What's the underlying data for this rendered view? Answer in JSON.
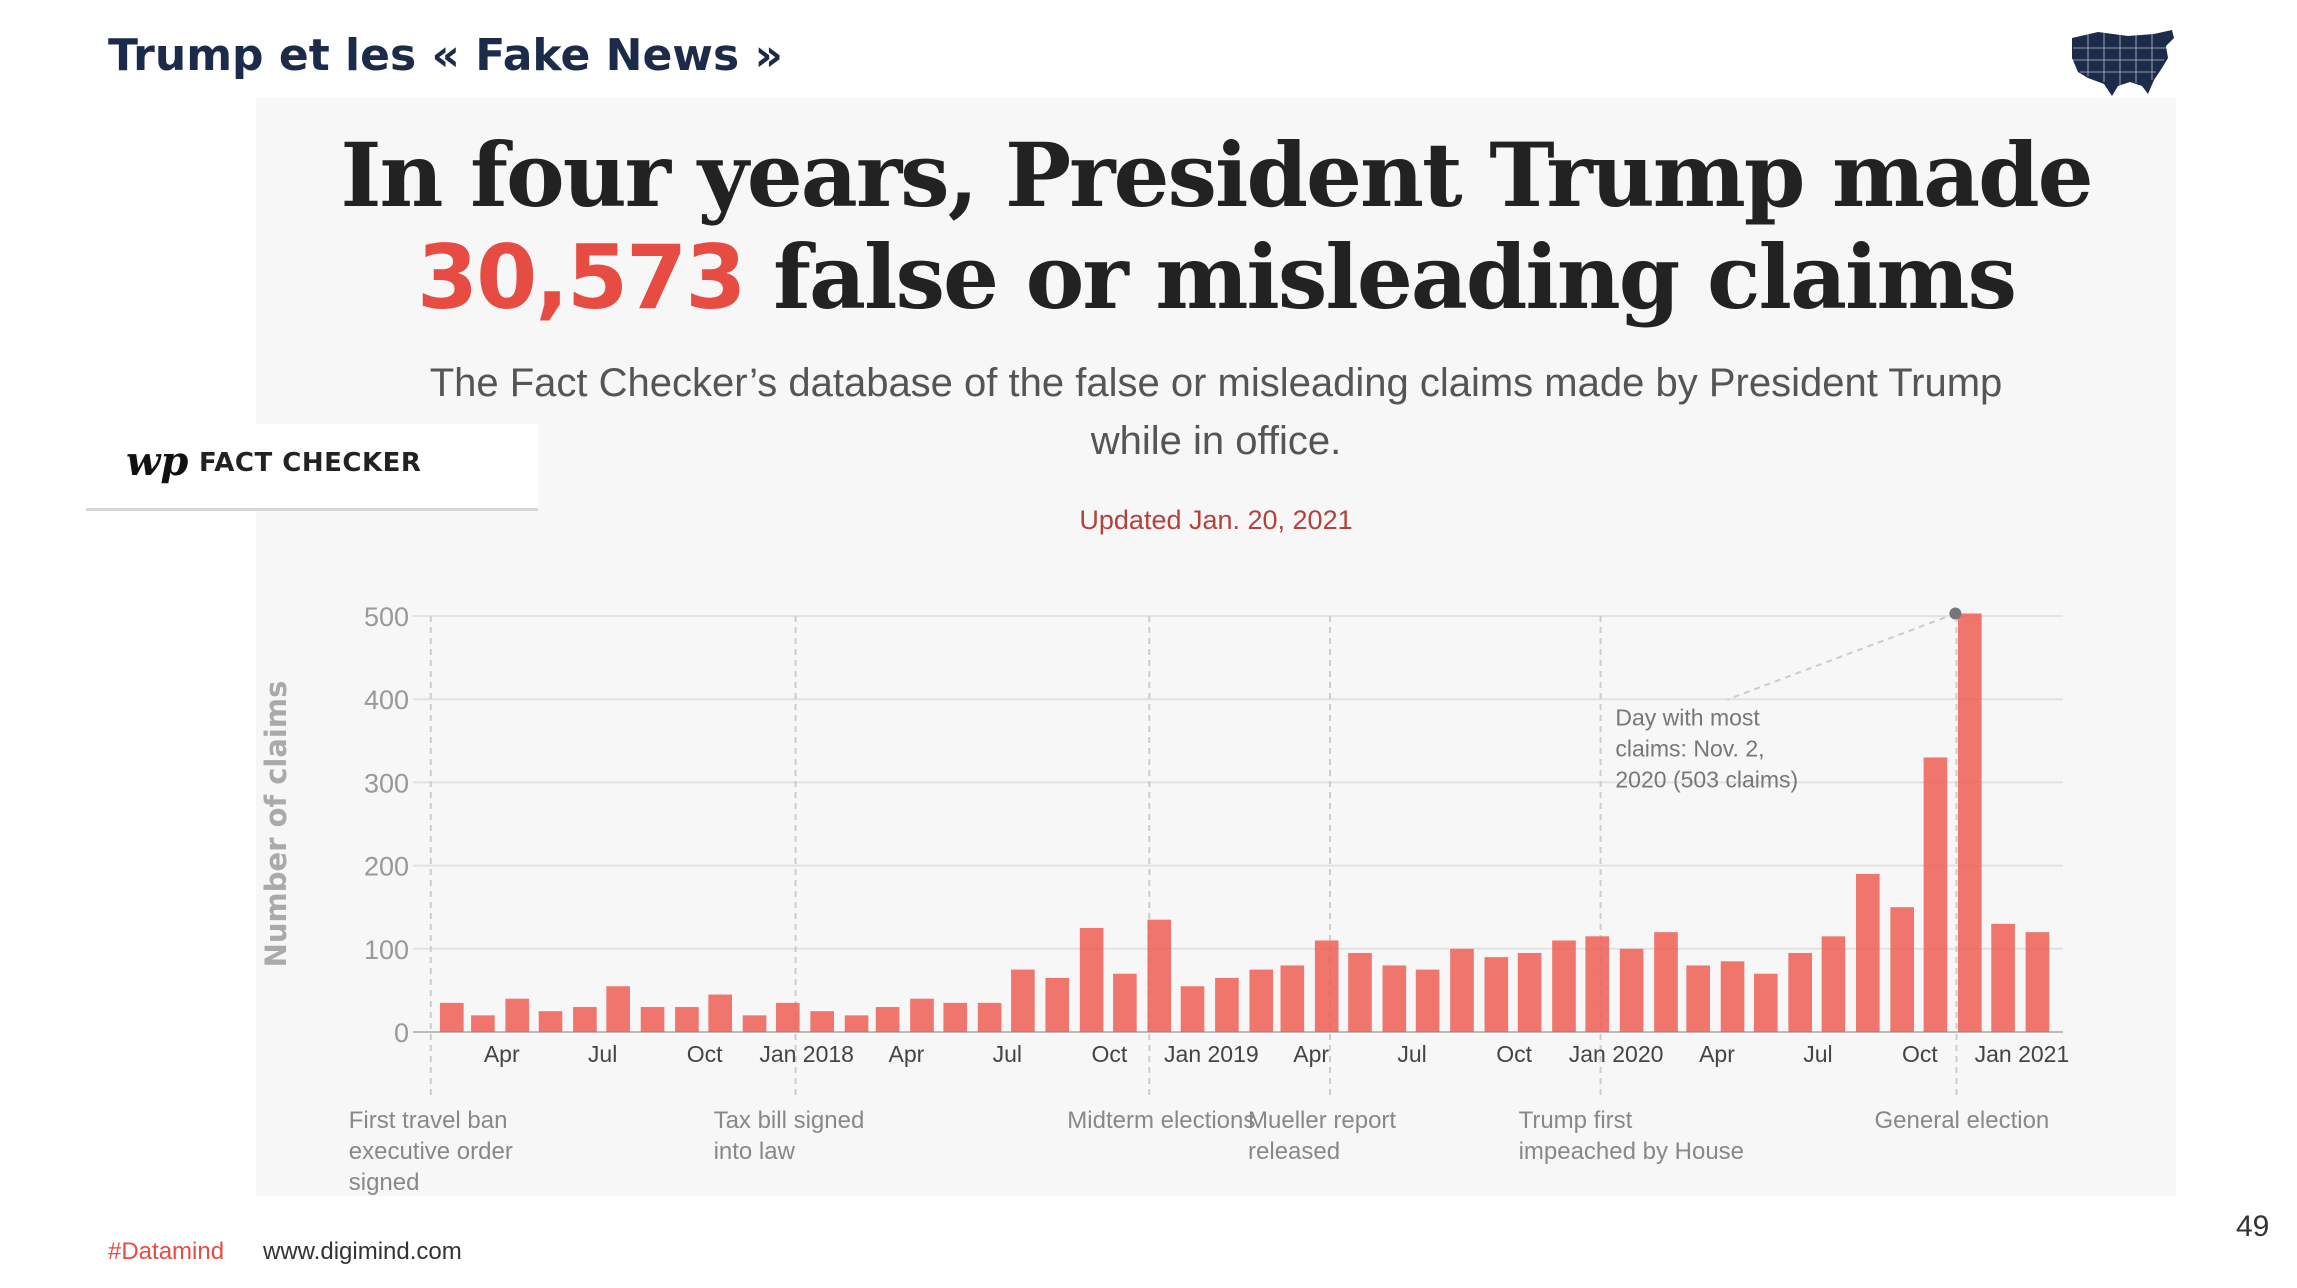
{
  "slide": {
    "title": "Trump et les « Fake News »",
    "page_number": "49",
    "footer_tag": "#Datamind",
    "footer_url": "www.digimind.com",
    "map_icon": "usa-map-icon"
  },
  "graphic": {
    "headline_line1": "In four years, President Trump made",
    "headline_number": "30,573",
    "headline_rest": " false or misleading claims",
    "subtitle": "The Fact Checker’s database of the false or misleading claims made by President Trump while in office.",
    "updated": "Updated Jan. 20, 2021",
    "badge_logo": "wp",
    "badge_label": "FACT CHECKER"
  },
  "colors": {
    "accent": "#e64c42",
    "bar": "#ee5e55",
    "title_navy": "#1c2b49",
    "updated": "#b5413c"
  },
  "chart_data": {
    "type": "bar",
    "title": "",
    "xlabel": "",
    "ylabel": "Number of claims",
    "ylim": [
      0,
      500
    ],
    "yticks": [
      0,
      100,
      200,
      300,
      400,
      500
    ],
    "xlim": [
      "2017-01-20",
      "2021-01-20"
    ],
    "grid": true,
    "xticks": [
      {
        "date": "2017-04-01",
        "label": "Apr"
      },
      {
        "date": "2017-07-01",
        "label": "Jul"
      },
      {
        "date": "2017-10-01",
        "label": "Oct"
      },
      {
        "date": "2018-01-01",
        "label": "Jan 2018"
      },
      {
        "date": "2018-04-01",
        "label": "Apr"
      },
      {
        "date": "2018-07-01",
        "label": "Jul"
      },
      {
        "date": "2018-10-01",
        "label": "Oct"
      },
      {
        "date": "2019-01-01",
        "label": "Jan 2019"
      },
      {
        "date": "2019-04-01",
        "label": "Apr"
      },
      {
        "date": "2019-07-01",
        "label": "Jul"
      },
      {
        "date": "2019-10-01",
        "label": "Oct"
      },
      {
        "date": "2020-01-01",
        "label": "Jan 2020"
      },
      {
        "date": "2020-04-01",
        "label": "Apr"
      },
      {
        "date": "2020-07-01",
        "label": "Jul"
      },
      {
        "date": "2020-10-01",
        "label": "Oct"
      },
      {
        "date": "2021-01-01",
        "label": "Jan 2021"
      }
    ],
    "events": [
      {
        "date": "2017-01-27",
        "label": "First travel ban executive order signed"
      },
      {
        "date": "2017-12-22",
        "label": "Tax bill signed into law"
      },
      {
        "date": "2018-11-06",
        "label": "Midterm elections"
      },
      {
        "date": "2019-04-18",
        "label": "Mueller report released"
      },
      {
        "date": "2019-12-18",
        "label": "Trump first impeached by House"
      },
      {
        "date": "2020-11-03",
        "label": "General election"
      }
    ],
    "peak": {
      "date": "2020-11-02",
      "value": 503,
      "annotation": "Day with most claims: Nov. 2, 2020 (503 claims)"
    },
    "series": [
      {
        "x": [
          "2017-02",
          "2017-03",
          "2017-04",
          "2017-05",
          "2017-06",
          "2017-07",
          "2017-08",
          "2017-09",
          "2017-10",
          "2017-11",
          "2017-12",
          "2018-01",
          "2018-02",
          "2018-03",
          "2018-04",
          "2018-05",
          "2018-06",
          "2018-07",
          "2018-08",
          "2018-09",
          "2018-10",
          "2018-11",
          "2018-12",
          "2019-01",
          "2019-02",
          "2019-03",
          "2019-04",
          "2019-05",
          "2019-06",
          "2019-07",
          "2019-08",
          "2019-09",
          "2019-10",
          "2019-11",
          "2019-12",
          "2020-01",
          "2020-02",
          "2020-03",
          "2020-04",
          "2020-05",
          "2020-06",
          "2020-07",
          "2020-08",
          "2020-09",
          "2020-10",
          "2020-11",
          "2020-12",
          "2021-01"
        ],
        "values": [
          35,
          20,
          40,
          25,
          30,
          55,
          30,
          30,
          45,
          20,
          35,
          25,
          20,
          30,
          40,
          35,
          35,
          75,
          65,
          125,
          70,
          135,
          55,
          65,
          75,
          80,
          110,
          95,
          80,
          75,
          100,
          90,
          95,
          110,
          115,
          100,
          120,
          80,
          85,
          70,
          95,
          115,
          190,
          150,
          330,
          503,
          130,
          120
        ]
      }
    ]
  }
}
